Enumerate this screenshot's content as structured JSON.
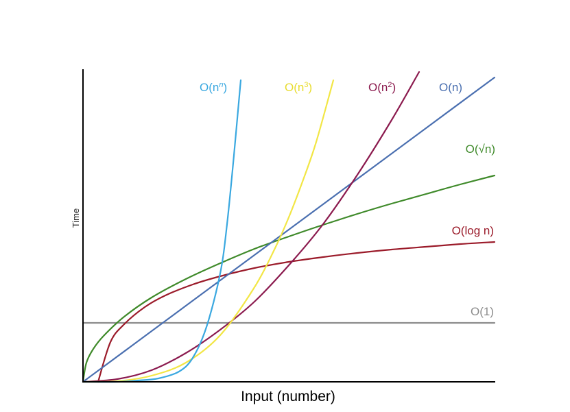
{
  "chart_data": {
    "type": "line",
    "xlabel": "Input (number)",
    "ylabel": "Time",
    "grid": false,
    "legend": "none; labels placed next to each curve",
    "series": [
      {
        "name": "O(1)",
        "label_parts": [
          "O(1)"
        ],
        "color": "#8c8c8c",
        "x": [
          0,
          50,
          100,
          150,
          200,
          250,
          300,
          350,
          400,
          450,
          500,
          550,
          600
        ],
        "y": [
          86,
          86,
          86,
          86,
          86,
          86,
          86,
          86,
          86,
          86,
          86,
          86,
          86
        ]
      },
      {
        "name": "O(log n)",
        "label_parts": [
          "O(log n)"
        ],
        "color": "#9b1b2a",
        "x": [
          22,
          40,
          60,
          90,
          120,
          160,
          200,
          250,
          300,
          350,
          400,
          450,
          500,
          550,
          600
        ],
        "y": [
          0,
          58,
          84,
          109,
          126,
          142,
          154,
          166,
          175,
          182,
          188,
          193,
          197,
          201,
          204
        ]
      },
      {
        "name": "O(√n)",
        "label_parts": [
          "O(√n)"
        ],
        "color": "#3f8a2a",
        "x": [
          0,
          5,
          15,
          30,
          60,
          100,
          150,
          200,
          250,
          300,
          350,
          400,
          450,
          500,
          550,
          600
        ],
        "y": [
          0,
          28,
          48,
          67,
          95,
          123,
          150,
          173,
          194,
          212,
          229,
          245,
          260,
          274,
          288,
          301
        ]
      },
      {
        "name": "O(n)",
        "label_parts": [
          "O(n)"
        ],
        "color": "#4a6fb0",
        "x": [
          0,
          100,
          200,
          300,
          400,
          500,
          600
        ],
        "y": [
          0,
          74,
          148,
          222,
          296,
          370,
          444
        ]
      },
      {
        "name": "O(n²)",
        "label_parts": [
          "O(n",
          "2",
          ")"
        ],
        "color": "#8b1a4e",
        "x": [
          0,
          50,
          100,
          150,
          200,
          250,
          300,
          350,
          400,
          450,
          490
        ],
        "y": [
          0,
          4,
          17,
          42,
          76,
          117,
          170,
          230,
          302,
          382,
          452
        ]
      },
      {
        "name": "O(n³)",
        "label_parts": [
          "O(n",
          "3",
          ")"
        ],
        "color": "#f2e645",
        "x": [
          0,
          50,
          100,
          150,
          200,
          250,
          280,
          300,
          320,
          340,
          365
        ],
        "y": [
          0,
          1,
          9,
          28,
          68,
          138,
          195,
          240,
          292,
          350,
          440
        ]
      },
      {
        "name": "O(nⁿ)",
        "label_parts": [
          "O(n",
          "n",
          ")"
        ],
        "color": "#3aa8e0",
        "x": [
          0,
          50,
          80,
          110,
          140,
          160,
          180,
          200,
          210,
          220,
          230
        ],
        "y": [
          0,
          0,
          2,
          5,
          15,
          35,
          80,
          158,
          230,
          330,
          440
        ]
      }
    ]
  }
}
